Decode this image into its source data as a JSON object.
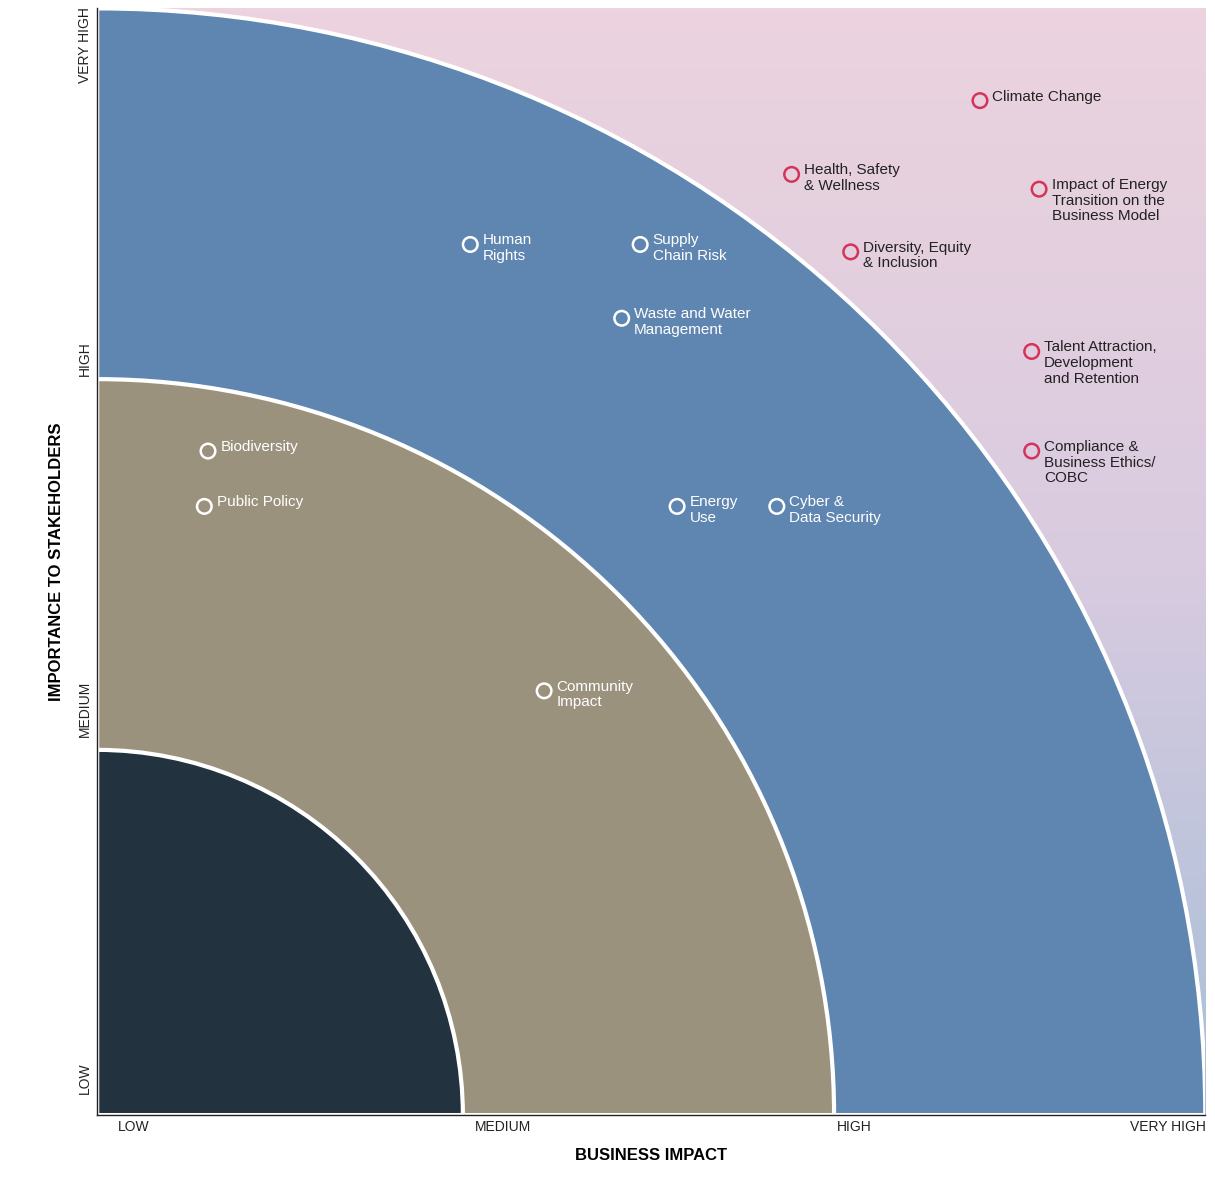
{
  "chart_data": {
    "type": "scatter",
    "x_label": "BUSINESS IMPACT",
    "y_label": "IMPORTANCE TO STAKEHOLDERS",
    "xlim": [
      0,
      3
    ],
    "ylim": [
      0,
      3
    ],
    "xticks": [
      {
        "value": 0.1,
        "label": "LOW"
      },
      {
        "value": 1.1,
        "label": "MEDIUM"
      },
      {
        "value": 2.05,
        "label": "HIGH"
      },
      {
        "value": 2.9,
        "label": "VERY HIGH"
      }
    ],
    "yticks": [
      {
        "value": 0.1,
        "label": "LOW"
      },
      {
        "value": 1.1,
        "label": "MEDIUM"
      },
      {
        "value": 2.05,
        "label": "HIGH"
      },
      {
        "value": 2.9,
        "label": "VERY HIGH"
      }
    ],
    "grid": false,
    "marker": "o",
    "labels": [
      "Climate Change",
      "Health, Safety\n& Wellness",
      "Impact of Energy\nTransition on the\nBusiness Model",
      "Diversity, Equity\n& Inclusion",
      "Talent Attraction,\nDevelopment\nand Retention",
      "Compliance &\nBusiness Ethics/\nCOBC",
      "Human\nRights",
      "Supply\nChain Risk",
      "Waste and Water\nManagement",
      "Energy\nUse",
      "Cyber &\nData Security",
      "Biodiversity",
      "Public Policy",
      "Community\nImpact"
    ],
    "x": [
      2.39,
      1.88,
      2.55,
      2.04,
      2.53,
      2.53,
      1.01,
      1.47,
      1.42,
      1.57,
      1.84,
      0.3,
      0.29,
      1.21
    ],
    "y": [
      2.75,
      2.55,
      2.51,
      2.34,
      2.07,
      1.8,
      2.36,
      2.36,
      2.16,
      1.65,
      1.65,
      1.8,
      1.65,
      1.15
    ],
    "colors": [
      "#d6335a",
      "#d6335a",
      "#d6335a",
      "#d6335a",
      "#d6335a",
      "#d6335a",
      "#ffffff",
      "#ffffff",
      "#ffffff",
      "#ffffff",
      "#ffffff",
      "#ffffff",
      "#ffffff",
      "#ffffff"
    ]
  }
}
